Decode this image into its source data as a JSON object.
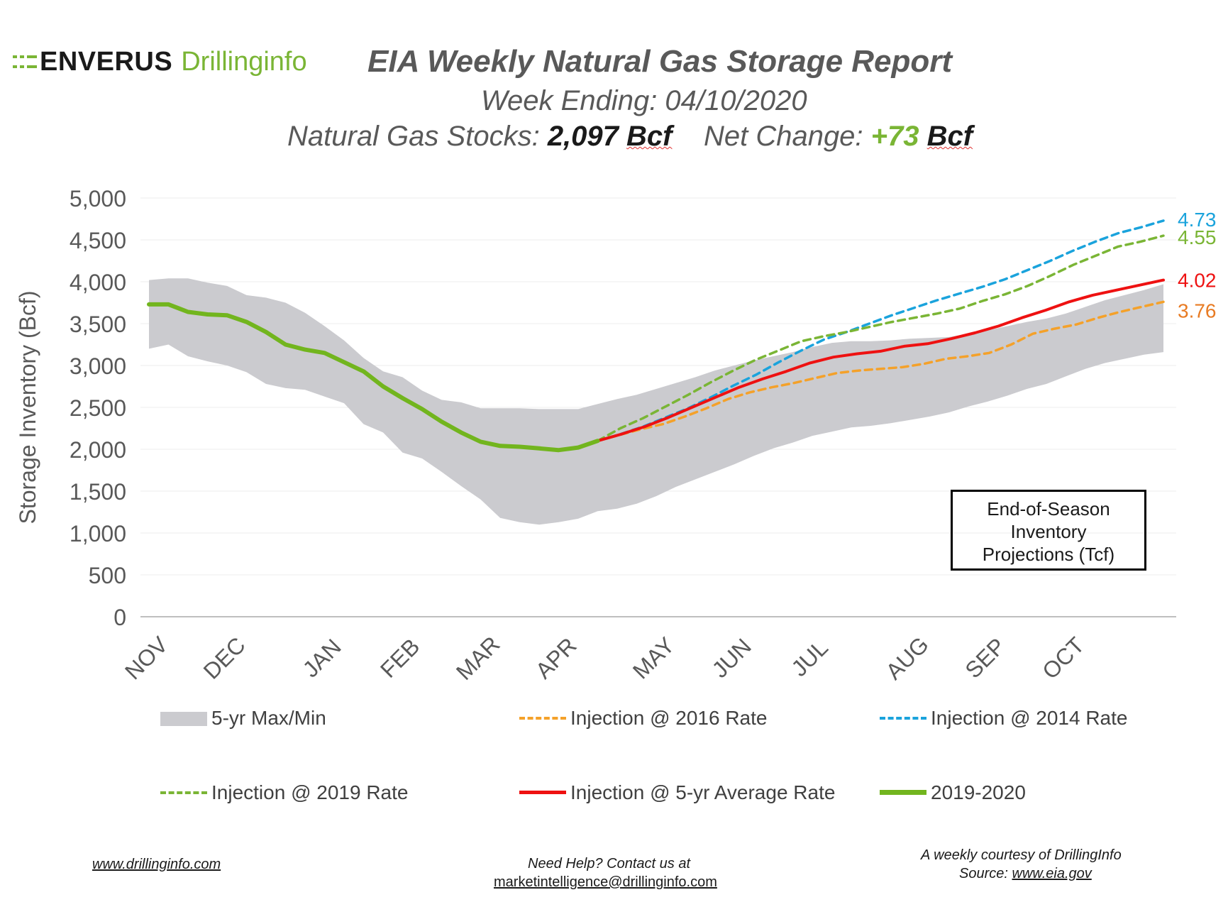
{
  "logo": {
    "brand": "ENVERUS",
    "product": "Drillinginfo"
  },
  "header": {
    "title": "EIA Weekly Natural Gas Storage Report",
    "subtitle": "Week Ending: 04/10/2020",
    "stocks_label": "Natural Gas Stocks:",
    "stocks_value": "2,097",
    "stocks_unit": "Bcf",
    "change_label": "Net Change:",
    "change_value": "+73",
    "change_unit": "Bcf"
  },
  "end_of_season_box": {
    "line1": "End-of-Season",
    "line2": "Inventory",
    "line3": "Projections (Tcf)"
  },
  "footer": {
    "website": "www.drillinginfo.com",
    "help_line1": "Need Help? Contact us at",
    "help_email": "marketintelligence@drillinginfo.com",
    "courtesy": "A weekly courtesy of DrillingInfo",
    "source_label": "Source:",
    "source_url": "www.eia.gov"
  },
  "colors": {
    "band": "#cbcbcf",
    "inj_2016": "#f4a12a",
    "inj_2014": "#1aa3dc",
    "inj_2019": "#7ab535",
    "inj_5yr": "#ee1111",
    "actual": "#72b51e",
    "end_2016": "#e87b23"
  },
  "chart_data": {
    "type": "line",
    "ylabel": "Storage Inventory (Bcf)",
    "ylim": [
      0,
      5000
    ],
    "yticks": [
      "0",
      "500",
      "1,000",
      "1,500",
      "2,000",
      "2,500",
      "3,000",
      "3,500",
      "4,000",
      "4,500",
      "5,000"
    ],
    "ytick_values": [
      0,
      500,
      1000,
      1500,
      2000,
      2500,
      3000,
      3500,
      4000,
      4500,
      5000
    ],
    "grid": true,
    "months": [
      {
        "label": "NOV",
        "week": 0
      },
      {
        "label": "DEC",
        "week": 4
      },
      {
        "label": "JAN",
        "week": 9
      },
      {
        "label": "FEB",
        "week": 13
      },
      {
        "label": "MAR",
        "week": 17
      },
      {
        "label": "APR",
        "week": 21
      },
      {
        "label": "MAY",
        "week": 26
      },
      {
        "label": "JUN",
        "week": 30
      },
      {
        "label": "JUL",
        "week": 34
      },
      {
        "label": "AUG",
        "week": 39
      },
      {
        "label": "SEP",
        "week": 43
      },
      {
        "label": "OCT",
        "week": 47
      }
    ],
    "band_max": [
      4020,
      4040,
      4040,
      3990,
      3950,
      3840,
      3810,
      3750,
      3630,
      3470,
      3300,
      3090,
      2930,
      2860,
      2700,
      2590,
      2560,
      2490,
      2490,
      2490,
      2480,
      2480,
      2480,
      2540,
      2600,
      2650,
      2720,
      2790,
      2860,
      2940,
      3000,
      3060,
      3110,
      3160,
      3220,
      3270,
      3290,
      3290,
      3300,
      3320,
      3330,
      3340,
      3380,
      3420,
      3470,
      3520,
      3560,
      3620,
      3700,
      3780,
      3840,
      3900,
      3970
    ],
    "band_min": [
      3200,
      3250,
      3110,
      3050,
      3000,
      2920,
      2780,
      2730,
      2710,
      2630,
      2550,
      2300,
      2200,
      1960,
      1890,
      1730,
      1560,
      1400,
      1180,
      1130,
      1100,
      1130,
      1170,
      1260,
      1290,
      1350,
      1440,
      1550,
      1640,
      1730,
      1820,
      1920,
      2010,
      2080,
      2160,
      2210,
      2260,
      2280,
      2310,
      2350,
      2390,
      2440,
      2510,
      2570,
      2640,
      2720,
      2780,
      2870,
      2960,
      3030,
      3080,
      3130,
      3160
    ],
    "series": [
      {
        "name": "2019-2020",
        "start_week": 0,
        "values": [
          3730,
          3730,
          3640,
          3610,
          3600,
          3520,
          3400,
          3250,
          3190,
          3150,
          3040,
          2930,
          2750,
          2610,
          2480,
          2330,
          2200,
          2090,
          2040,
          2030,
          2010,
          1990,
          2020,
          2100
        ]
      },
      {
        "name": "Injection @ 2016 Rate",
        "start_week": 23,
        "end_label": "3.76",
        "values": [
          2100,
          2170,
          2240,
          2300,
          2390,
          2490,
          2600,
          2680,
          2740,
          2790,
          2850,
          2910,
          2940,
          2960,
          2980,
          3020,
          3080,
          3110,
          3150,
          3250,
          3380,
          3440,
          3490,
          3570,
          3640,
          3700,
          3760
        ]
      },
      {
        "name": "Injection @ 2014 Rate",
        "start_week": 23,
        "end_label": "4.73",
        "values": [
          2100,
          2180,
          2270,
          2380,
          2490,
          2620,
          2760,
          2890,
          3040,
          3180,
          3310,
          3400,
          3500,
          3600,
          3690,
          3780,
          3860,
          3940,
          4030,
          4140,
          4250,
          4370,
          4480,
          4580,
          4650,
          4730
        ]
      },
      {
        "name": "Injection @ 2019 Rate",
        "start_week": 23,
        "end_label": "4.55",
        "values": [
          2100,
          2250,
          2370,
          2510,
          2650,
          2800,
          2940,
          3070,
          3180,
          3290,
          3350,
          3400,
          3460,
          3520,
          3570,
          3620,
          3680,
          3770,
          3850,
          3950,
          4070,
          4200,
          4310,
          4420,
          4480,
          4550
        ]
      },
      {
        "name": "Injection @ 5-yr Average Rate",
        "start_week": 23,
        "end_label": "4.02",
        "values": [
          2100,
          2180,
          2270,
          2380,
          2500,
          2620,
          2740,
          2840,
          2930,
          3030,
          3100,
          3140,
          3170,
          3230,
          3260,
          3320,
          3390,
          3470,
          3570,
          3660,
          3760,
          3840,
          3900,
          3960,
          4020
        ]
      },
      {
        "name": "5-yr Max/Min",
        "start_week": 0
      }
    ],
    "legend": [
      {
        "key": "band",
        "label": "5-yr Max/Min"
      },
      {
        "key": "inj_2016",
        "label": "Injection @ 2016 Rate"
      },
      {
        "key": "inj_2014",
        "label": "Injection @ 2014 Rate"
      },
      {
        "key": "inj_2019",
        "label": "Injection @ 2019 Rate"
      },
      {
        "key": "inj_5yr",
        "label": "Injection @ 5-yr Average Rate"
      },
      {
        "key": "actual",
        "label": "2019-2020"
      }
    ]
  }
}
